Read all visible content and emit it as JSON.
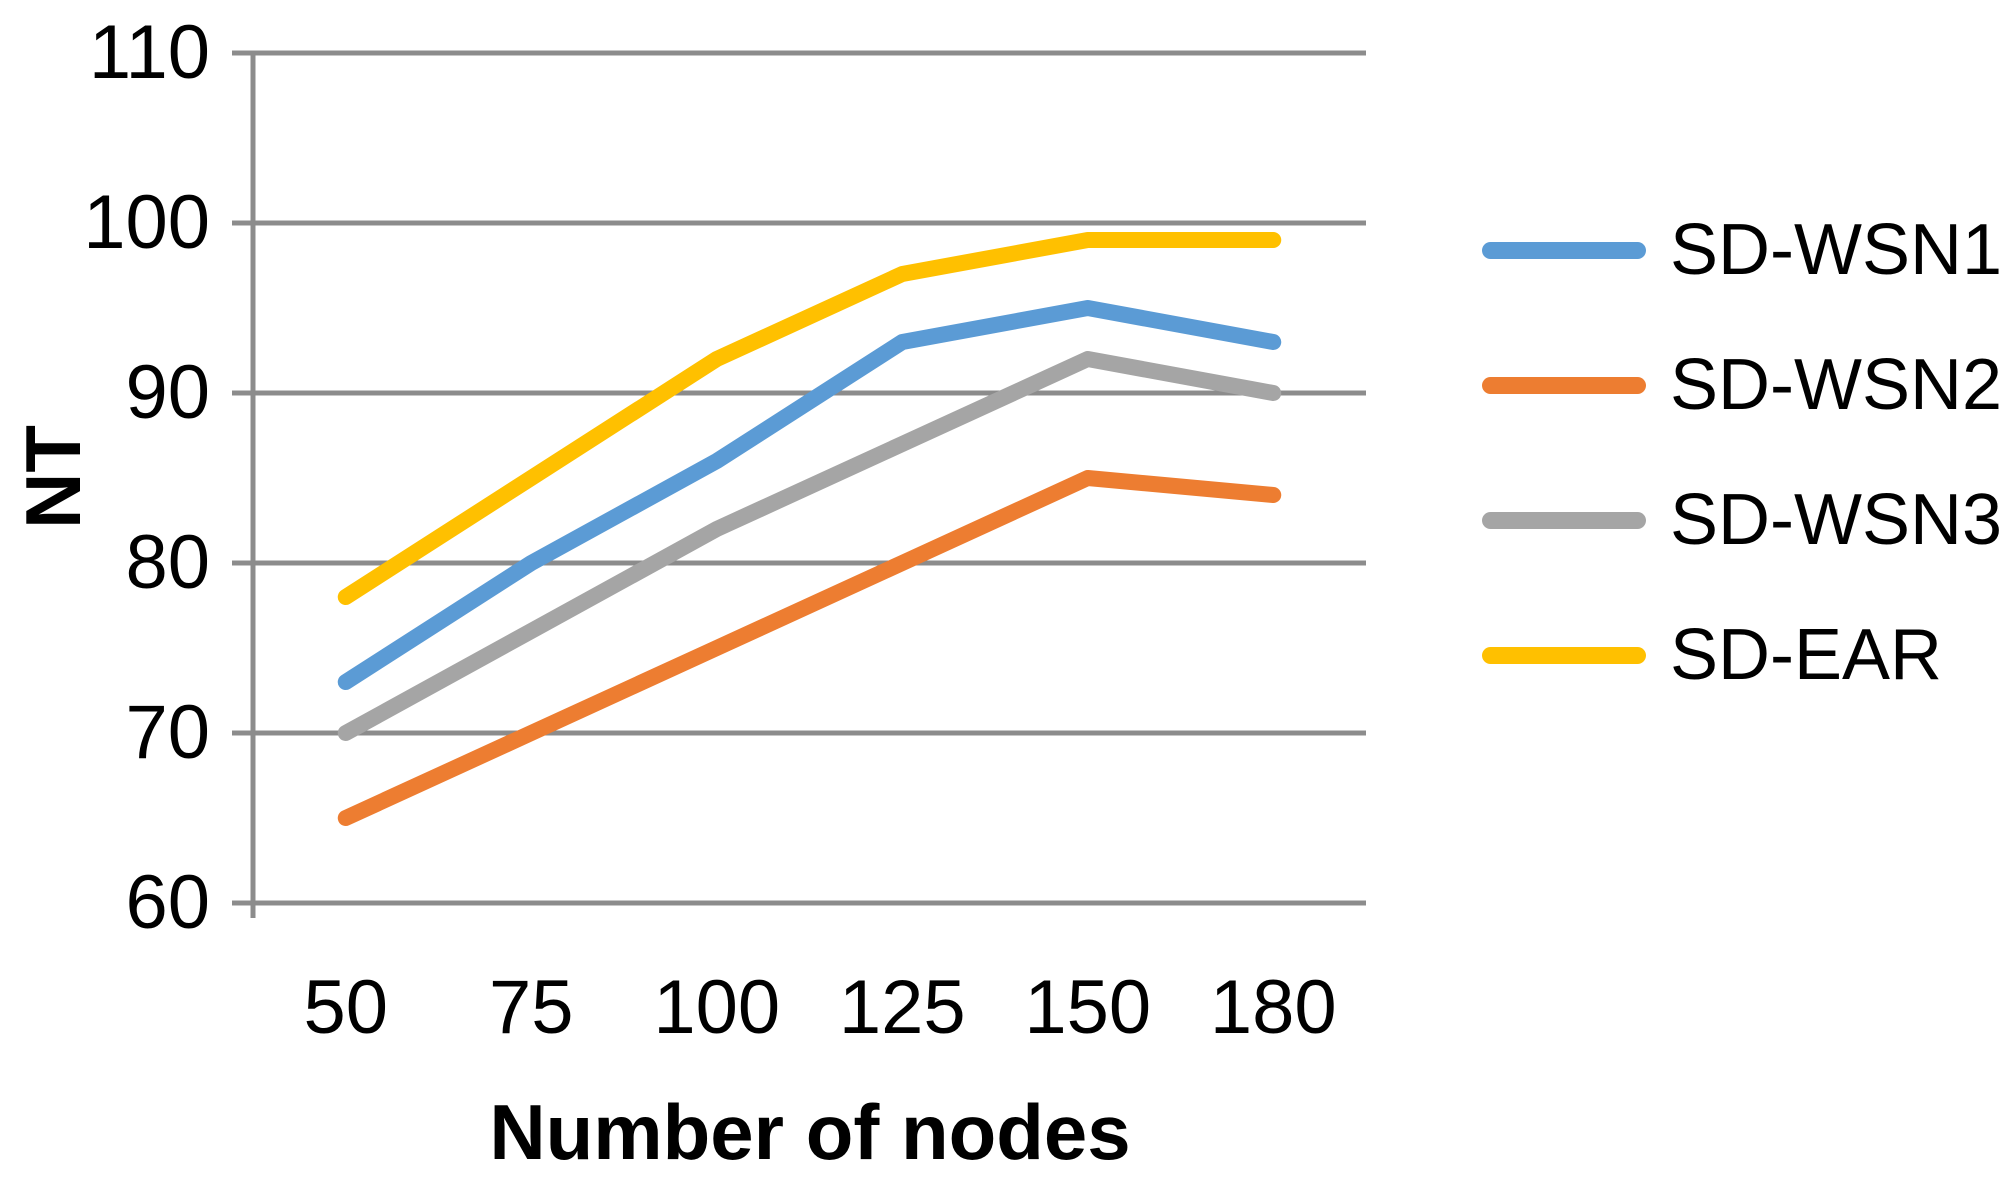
{
  "chart_data": {
    "type": "line",
    "title": "",
    "xlabel": "Number of nodes",
    "ylabel": "NT",
    "categories": [
      "50",
      "75",
      "100",
      "125",
      "150",
      "180"
    ],
    "series": [
      {
        "name": "SD-WSN1",
        "color": "#5B9BD5",
        "values": [
          73,
          80,
          86,
          93,
          95,
          93
        ]
      },
      {
        "name": "SD-WSN2",
        "color": "#ED7D31",
        "values": [
          65,
          70,
          75,
          80,
          85,
          84
        ]
      },
      {
        "name": "SD-WSN3",
        "color": "#A5A5A5",
        "values": [
          70,
          76,
          82,
          87,
          92,
          90
        ]
      },
      {
        "name": "SD-EAR",
        "color": "#FFC000",
        "values": [
          78,
          85,
          92,
          97,
          99,
          99
        ]
      }
    ],
    "ylim": [
      60,
      110
    ],
    "yticks_display_top_to_bottom": [
      110,
      100,
      90,
      80,
      70,
      60
    ],
    "grid": true,
    "legend_position": "right",
    "gridline_color": "#8C8C8C",
    "axis_line_color": "#8C8C8C",
    "text_color": "#000000",
    "background": "#FFFFFF"
  }
}
